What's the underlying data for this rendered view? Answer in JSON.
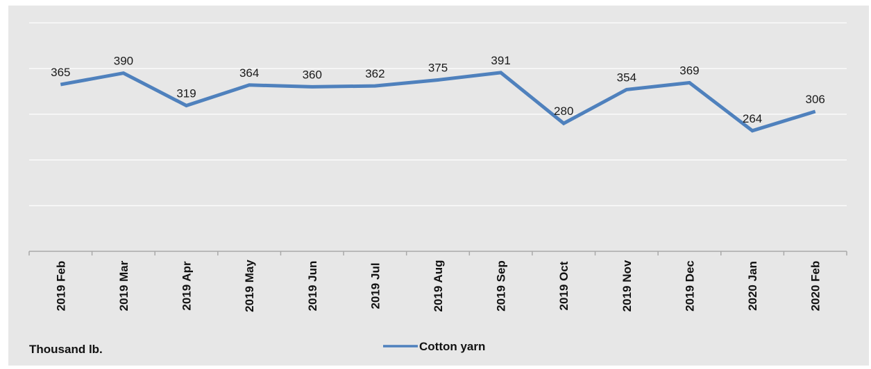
{
  "chart_data": {
    "type": "line",
    "categories": [
      "2019 Feb",
      "2019 Mar",
      "2019 Apr",
      "2019 May",
      "2019 Jun",
      "2019 Jul",
      "2019 Aug",
      "2019 Sep",
      "2019 Oct",
      "2019 Nov",
      "2019 Dec",
      "2020 Jan",
      "2020 Feb"
    ],
    "series": [
      {
        "name": "Cotton yarn",
        "values": [
          365,
          390,
          319,
          364,
          360,
          362,
          375,
          391,
          280,
          354,
          369,
          264,
          306
        ],
        "color": "#4f81bd"
      }
    ],
    "unit_label": "Thousand lb.",
    "ylim": [
      0,
      500
    ],
    "y_gridlines": [
      100,
      200,
      300,
      400,
      500
    ],
    "show_y_tick_labels": false,
    "grid": true,
    "legend_position": "bottom-center",
    "background_color": "#e7e7e7",
    "gridline_color": "#f6f6f6"
  }
}
